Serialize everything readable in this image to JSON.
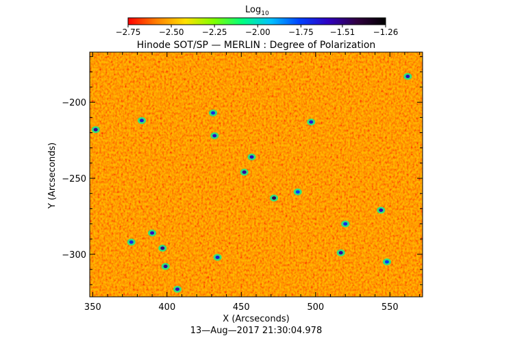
{
  "chart_data": {
    "type": "heatmap",
    "title": "Hinode SOT/SP — MERLIN : Degree of Polarization",
    "xlabel": "X (Arcseconds)",
    "ylabel": "Y (Arcseconds)",
    "timestamp": "13—Aug—2017 21:30:04.978",
    "xlim": [
      348,
      572
    ],
    "ylim": [
      -328,
      -167
    ],
    "x_ticks": [
      {
        "value": 350,
        "label": "350"
      },
      {
        "value": 400,
        "label": "400"
      },
      {
        "value": 450,
        "label": "450"
      },
      {
        "value": 500,
        "label": "500"
      },
      {
        "value": 550,
        "label": "550"
      }
    ],
    "y_ticks": [
      {
        "value": -200,
        "label": "−200"
      },
      {
        "value": -250,
        "label": "−250"
      },
      {
        "value": -300,
        "label": "−300"
      }
    ],
    "colorbar": {
      "title": "Log",
      "title_subscript": "10",
      "range": [
        -2.75,
        -1.26
      ],
      "tick_values": [
        -2.75,
        -2.5,
        -2.25,
        -2.0,
        -1.75,
        -1.51,
        -1.26
      ],
      "tick_labels": [
        "−2.75",
        "−2.50",
        "−2.25",
        "−2.00",
        "−1.75",
        "−1.51",
        "−1.26"
      ],
      "colormap": [
        "#ff0000",
        "#ff8000",
        "#ffe000",
        "#80ff00",
        "#00ff80",
        "#00c0ff",
        "#0040ff",
        "#3000c0",
        "#300040",
        "#000000"
      ]
    },
    "map_background_value": -2.62,
    "features": [
      {
        "x": 352,
        "y": -218,
        "value": -1.55
      },
      {
        "x": 376,
        "y": -292,
        "value": -1.7
      },
      {
        "x": 383,
        "y": -212,
        "value": -1.65
      },
      {
        "x": 390,
        "y": -286,
        "value": -1.6
      },
      {
        "x": 397,
        "y": -296,
        "value": -1.52
      },
      {
        "x": 399,
        "y": -308,
        "value": -1.55
      },
      {
        "x": 407,
        "y": -323,
        "value": -1.6
      },
      {
        "x": 431,
        "y": -207,
        "value": -1.7
      },
      {
        "x": 432,
        "y": -222,
        "value": -1.62
      },
      {
        "x": 434,
        "y": -302,
        "value": -1.65
      },
      {
        "x": 452,
        "y": -246,
        "value": -1.55
      },
      {
        "x": 457,
        "y": -236,
        "value": -1.6
      },
      {
        "x": 472,
        "y": -263,
        "value": -1.45
      },
      {
        "x": 488,
        "y": -259,
        "value": -1.75
      },
      {
        "x": 497,
        "y": -213,
        "value": -1.65
      },
      {
        "x": 517,
        "y": -299,
        "value": -1.55
      },
      {
        "x": 520,
        "y": -280,
        "value": -1.7
      },
      {
        "x": 544,
        "y": -271,
        "value": -1.6
      },
      {
        "x": 548,
        "y": -305,
        "value": -1.75
      },
      {
        "x": 562,
        "y": -183,
        "value": -1.6
      }
    ]
  }
}
